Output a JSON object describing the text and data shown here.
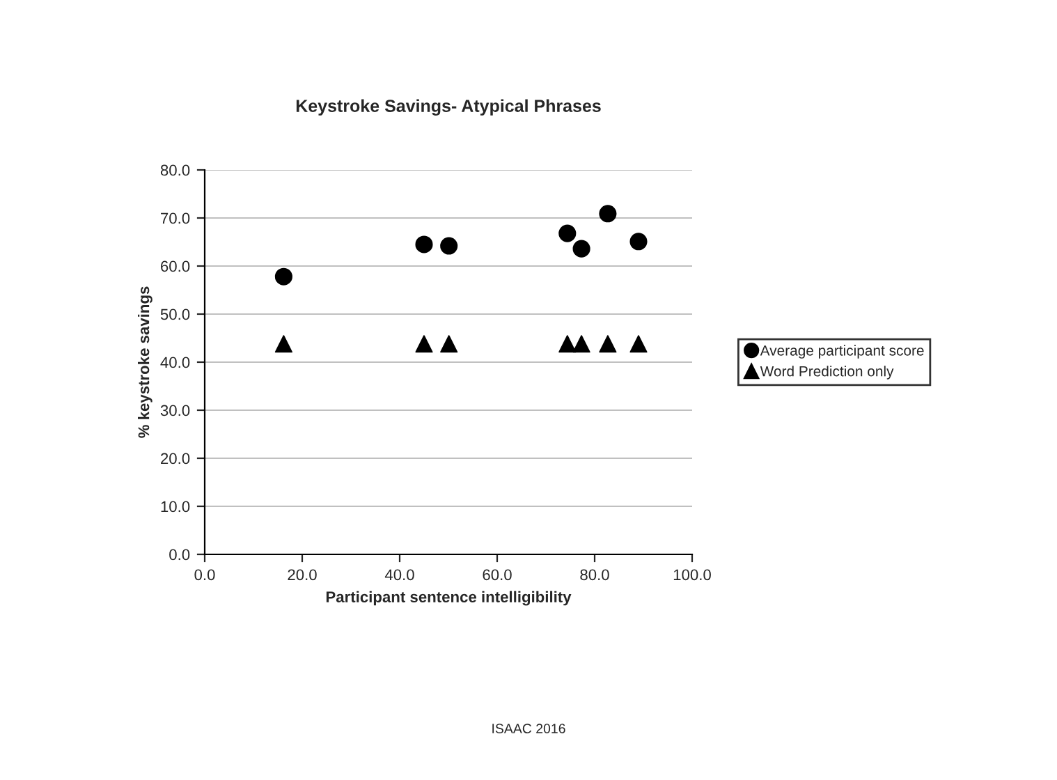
{
  "chart_data": {
    "type": "scatter",
    "title": "Keystroke Savings- Atypical Phrases",
    "xlabel": "Participant sentence intelligibility",
    "ylabel": "% keystroke savings",
    "x": [
      16.2,
      45.0,
      50.1,
      74.4,
      77.3,
      82.7,
      89.0
    ],
    "series": [
      {
        "name": "Average participant score",
        "color": "#000000",
        "marker": "circle",
        "values": [
          57.8,
          64.5,
          64.2,
          66.8,
          63.6,
          70.9,
          65.1
        ]
      },
      {
        "name": "Word Prediction only",
        "color": "#000000",
        "marker": "triangle",
        "values": [
          43.8,
          43.8,
          43.8,
          43.8,
          43.8,
          43.8,
          43.8
        ]
      }
    ],
    "xlim": [
      0,
      100
    ],
    "xticks": [
      {
        "value": 0,
        "label": "0.0"
      },
      {
        "value": 20,
        "label": "20.0"
      },
      {
        "value": 40,
        "label": "40.0"
      },
      {
        "value": 60,
        "label": "60.0"
      },
      {
        "value": 80,
        "label": "80.0"
      },
      {
        "value": 100,
        "label": "100.0"
      }
    ],
    "ylim": [
      0,
      80
    ],
    "yticks": [
      {
        "value": 0,
        "label": "0.0"
      },
      {
        "value": 10,
        "label": "10.0"
      },
      {
        "value": 20,
        "label": "20.0"
      },
      {
        "value": 30,
        "label": "30.0"
      },
      {
        "value": 40,
        "label": "40.0"
      },
      {
        "value": 50,
        "label": "50.0"
      },
      {
        "value": 60,
        "label": "60.0"
      },
      {
        "value": 70,
        "label": "70.0"
      },
      {
        "value": 80,
        "label": "80.0"
      }
    ],
    "grid": "y",
    "legend": "right",
    "annotations": [
      "ISAAC 2016"
    ]
  }
}
